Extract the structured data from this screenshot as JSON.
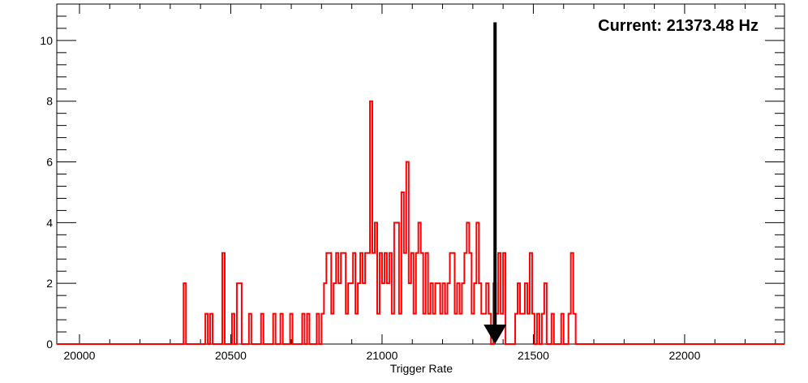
{
  "chart_data": {
    "type": "histogram",
    "title": "",
    "xlabel": "Trigger Rate",
    "ylabel": "",
    "xlim": [
      19925,
      22330
    ],
    "ylim": [
      0,
      11.2
    ],
    "x_ticks": [
      20000,
      20500,
      21000,
      21500,
      22000
    ],
    "x_tick_labels": [
      "20000",
      "20500",
      "21000",
      "21500",
      "22000"
    ],
    "y_ticks": [
      0,
      2,
      4,
      6,
      8,
      10
    ],
    "y_tick_labels": [
      "0",
      "2",
      "4",
      "6",
      "8",
      "10"
    ],
    "grid": false,
    "legend": "none",
    "series": [
      {
        "color": "#ff0000",
        "bin_width": 8,
        "bins": [
          [
            20344,
            2
          ],
          [
            20416,
            1
          ],
          [
            20432,
            1
          ],
          [
            20472,
            3
          ],
          [
            20504,
            1
          ],
          [
            20520,
            2
          ],
          [
            20528,
            2
          ],
          [
            20560,
            1
          ],
          [
            20600,
            1
          ],
          [
            20640,
            1
          ],
          [
            20664,
            1
          ],
          [
            20696,
            1
          ],
          [
            20736,
            1
          ],
          [
            20752,
            1
          ],
          [
            20784,
            1
          ],
          [
            20800,
            1
          ],
          [
            20808,
            2
          ],
          [
            20816,
            3
          ],
          [
            20824,
            3
          ],
          [
            20832,
            1
          ],
          [
            20840,
            2
          ],
          [
            20848,
            3
          ],
          [
            20856,
            2
          ],
          [
            20864,
            3
          ],
          [
            20872,
            3
          ],
          [
            20880,
            1
          ],
          [
            20888,
            2
          ],
          [
            20896,
            2
          ],
          [
            20904,
            3
          ],
          [
            20912,
            1
          ],
          [
            20920,
            2
          ],
          [
            20928,
            3
          ],
          [
            20936,
            2
          ],
          [
            20944,
            3
          ],
          [
            20952,
            3
          ],
          [
            20960,
            8
          ],
          [
            20968,
            3
          ],
          [
            20976,
            4
          ],
          [
            20984,
            1
          ],
          [
            20992,
            3
          ],
          [
            21000,
            2
          ],
          [
            21008,
            3
          ],
          [
            21016,
            2
          ],
          [
            21024,
            3
          ],
          [
            21032,
            1
          ],
          [
            21040,
            4
          ],
          [
            21048,
            4
          ],
          [
            21056,
            1
          ],
          [
            21064,
            5
          ],
          [
            21072,
            3
          ],
          [
            21080,
            6
          ],
          [
            21088,
            2
          ],
          [
            21096,
            3
          ],
          [
            21104,
            1
          ],
          [
            21112,
            3
          ],
          [
            21120,
            4
          ],
          [
            21128,
            3
          ],
          [
            21136,
            1
          ],
          [
            21144,
            3
          ],
          [
            21152,
            1
          ],
          [
            21160,
            2
          ],
          [
            21168,
            1
          ],
          [
            21176,
            2
          ],
          [
            21184,
            2
          ],
          [
            21192,
            1
          ],
          [
            21200,
            2
          ],
          [
            21208,
            1
          ],
          [
            21216,
            2
          ],
          [
            21224,
            3
          ],
          [
            21232,
            3
          ],
          [
            21240,
            1
          ],
          [
            21248,
            2
          ],
          [
            21256,
            1
          ],
          [
            21264,
            2
          ],
          [
            21272,
            3
          ],
          [
            21280,
            4
          ],
          [
            21288,
            3
          ],
          [
            21296,
            1
          ],
          [
            21304,
            2
          ],
          [
            21312,
            4
          ],
          [
            21320,
            2
          ],
          [
            21328,
            1
          ],
          [
            21336,
            1
          ],
          [
            21344,
            2
          ],
          [
            21352,
            1
          ],
          [
            21368,
            2
          ],
          [
            21376,
            1
          ],
          [
            21384,
            3
          ],
          [
            21392,
            1
          ],
          [
            21400,
            3
          ],
          [
            21440,
            1
          ],
          [
            21448,
            2
          ],
          [
            21456,
            1
          ],
          [
            21464,
            1
          ],
          [
            21472,
            2
          ],
          [
            21480,
            1
          ],
          [
            21488,
            3
          ],
          [
            21496,
            1
          ],
          [
            21512,
            1
          ],
          [
            21528,
            1
          ],
          [
            21536,
            2
          ],
          [
            21560,
            1
          ],
          [
            21592,
            1
          ],
          [
            21616,
            1
          ],
          [
            21624,
            3
          ],
          [
            21632,
            1
          ]
        ]
      }
    ],
    "annotations": [
      {
        "text": "Current: 21373.48 Hz",
        "location": "top-right"
      }
    ],
    "marker": {
      "x": 21373.48,
      "y_top": 10.6,
      "y_bottom": 0,
      "style": "arrow-down"
    }
  }
}
